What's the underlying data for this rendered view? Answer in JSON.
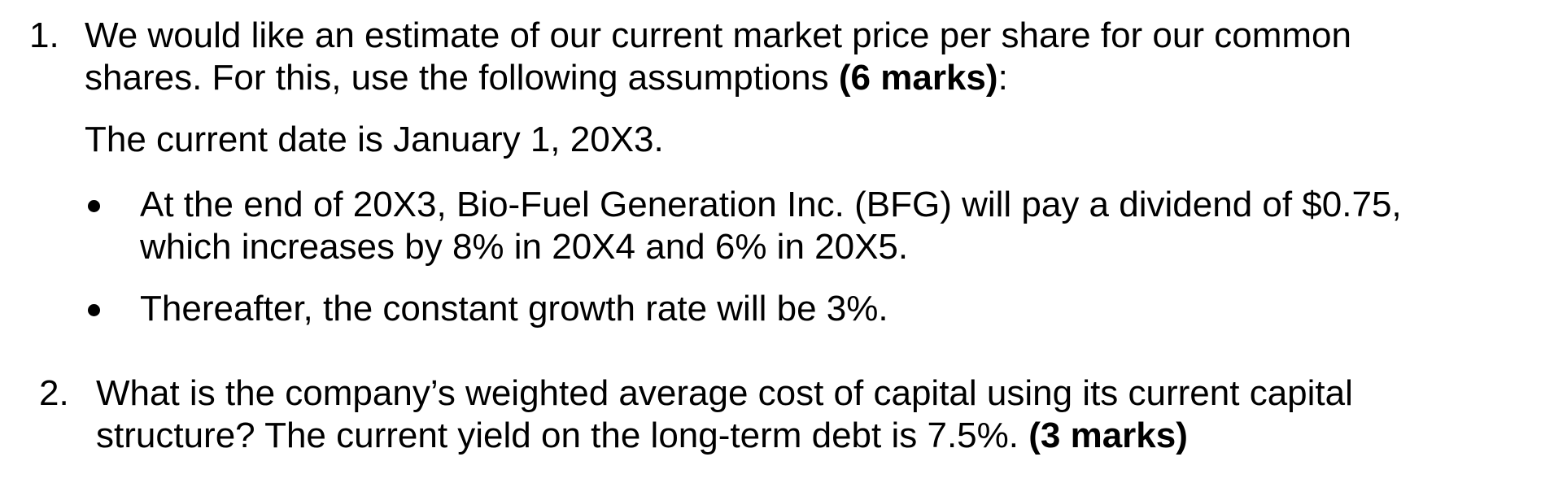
{
  "questions": [
    {
      "number": "1.",
      "line1": "We would like an estimate of our current market price per share for our common",
      "line2_text": "shares. For this, use the following assumptions ",
      "line2_marks": "(6 marks)",
      "line2_end": ":",
      "date_line": "The current date is January 1, 20X3.",
      "bullets": [
        {
          "line1": "At the end of 20X3, Bio-Fuel Generation Inc. (BFG) will pay a dividend of $0.75,",
          "line2": "which increases by 8% in 20X4 and 6% in 20X5."
        },
        {
          "line1": "Thereafter, the constant growth rate will be 3%."
        }
      ]
    },
    {
      "number": "2.",
      "line1": "What is the company’s weighted average cost of capital using its current capital",
      "line2_text": "structure? The current yield on the long-term debt is 7.5%. ",
      "line2_marks": "(3 marks)"
    }
  ]
}
